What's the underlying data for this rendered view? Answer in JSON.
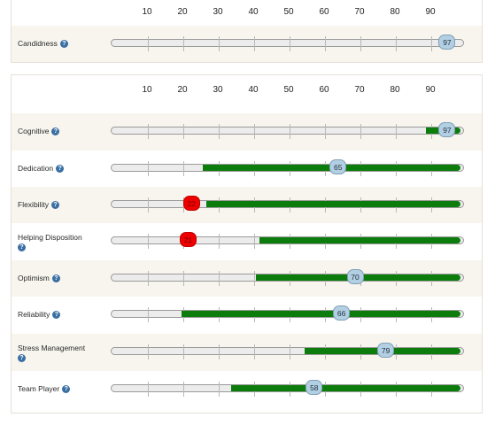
{
  "axis_ticks": [
    "10",
    "20",
    "30",
    "40",
    "50",
    "60",
    "70",
    "80",
    "90"
  ],
  "candidness": {
    "label": "Candidness",
    "help": "?",
    "value": "97",
    "value_fraction": 0.97
  },
  "traits": [
    {
      "label": "Cognitive",
      "help": "?",
      "value": "97",
      "fill_start": 0.895,
      "thumb": 0.97,
      "alert": false
    },
    {
      "label": "Dedication",
      "help": "?",
      "value": "65",
      "fill_start": 0.26,
      "thumb": 0.65,
      "alert": false
    },
    {
      "label": "Flexibility",
      "help": "?",
      "value": "22",
      "fill_start": 0.27,
      "thumb": 0.22,
      "alert": true
    },
    {
      "label": "Helping Disposition",
      "help": "?",
      "value": "21",
      "fill_start": 0.42,
      "thumb": 0.21,
      "alert": true
    },
    {
      "label": "Optimism",
      "help": "?",
      "value": "70",
      "fill_start": 0.41,
      "thumb": 0.7,
      "alert": false
    },
    {
      "label": "Reliability",
      "help": "?",
      "value": "66",
      "fill_start": 0.2,
      "thumb": 0.66,
      "alert": false
    },
    {
      "label": "Stress Management",
      "help": "?",
      "value": "79",
      "fill_start": 0.55,
      "thumb": 0.79,
      "alert": false
    },
    {
      "label": "Team Player",
      "help": "?",
      "value": "58",
      "fill_start": 0.34,
      "thumb": 0.58,
      "alert": false
    }
  ],
  "colors": {
    "fill_green": "#0c7d0c",
    "alert_red": "#ee0000",
    "thumb_blue": "#b3cfe3",
    "row_alt": "#f7f5ee"
  }
}
